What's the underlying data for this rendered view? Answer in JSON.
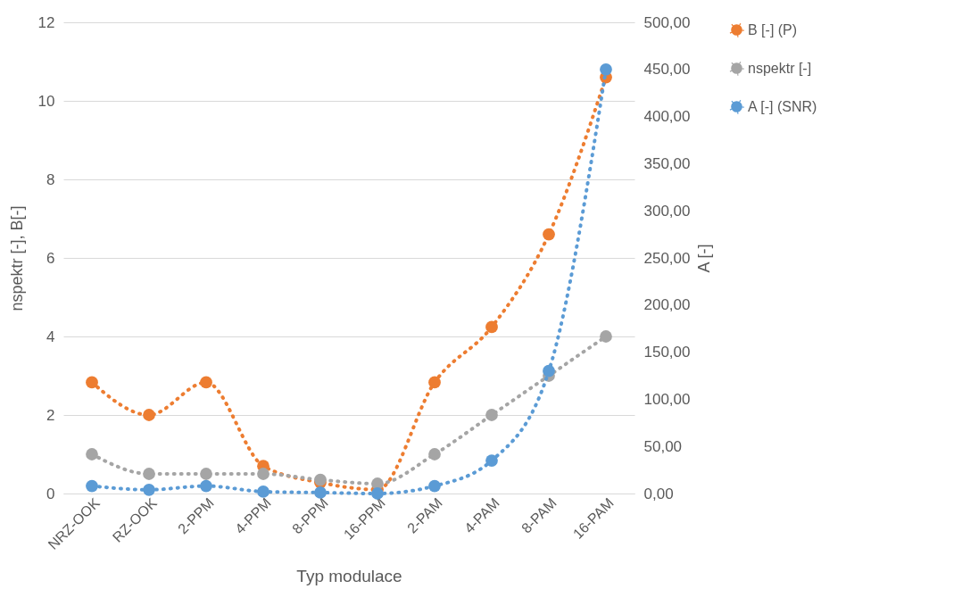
{
  "chart_data": {
    "type": "line",
    "xlabel": "Typ modulace",
    "ylabel": "nspektr [-],  B[-]",
    "y2label": "A [-]",
    "categories": [
      "NRZ-OOK",
      "RZ-OOK",
      "2-PPM",
      "4-PPM",
      "8-PPM",
      "16-PPM",
      "2-PAM",
      "4-PAM",
      "8-PAM",
      "16-PAM"
    ],
    "series": [
      {
        "name": "B [-] (P)",
        "color": "#ed7d31",
        "values": [
          2.83,
          2,
          2.83,
          0.7,
          0.28,
          0.1,
          2.83,
          4.24,
          6.6,
          10.6
        ]
      },
      {
        "name": "nspektr [-]",
        "color": "#a5a5a5",
        "values": [
          1,
          0.5,
          0.5,
          0.5,
          0.35,
          0.25,
          1,
          2,
          3,
          4
        ]
      },
      {
        "name": "A [-] (SNR)",
        "color": "#5b9bd5",
        "axis": "y2",
        "values": [
          8,
          4,
          8,
          2,
          1,
          0,
          8,
          35,
          130,
          450
        ]
      }
    ],
    "ylim": [
      0,
      12
    ],
    "yticks": [
      0,
      2,
      4,
      6,
      8,
      10,
      12
    ],
    "y2lim": [
      0,
      500
    ],
    "y2ticks": [
      {
        "value": 0,
        "label": "0,00"
      },
      {
        "value": 50,
        "label": "50,00"
      },
      {
        "value": 100,
        "label": "100,00"
      },
      {
        "value": 150,
        "label": "150,00"
      },
      {
        "value": 200,
        "label": "200,00"
      },
      {
        "value": 250,
        "label": "250,00"
      },
      {
        "value": 300,
        "label": "300,00"
      },
      {
        "value": 350,
        "label": "350,00"
      },
      {
        "value": 400,
        "label": "400,00"
      },
      {
        "value": 450,
        "label": "450,00"
      },
      {
        "value": 500,
        "label": "500,00"
      }
    ],
    "grid": "y",
    "legend": "right",
    "marker": "circle",
    "line_style": "dotted"
  }
}
